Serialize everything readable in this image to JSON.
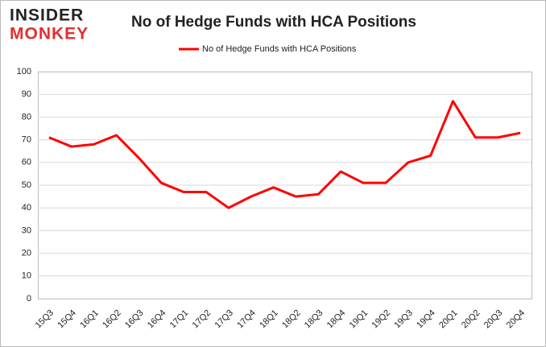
{
  "chart_data": {
    "type": "line",
    "logo": [
      "INSIDER",
      "MONKEY"
    ],
    "title": "No of Hedge Funds with HCA Positions",
    "categories": [
      "15Q3",
      "15Q4",
      "16Q1",
      "16Q2",
      "16Q3",
      "16Q4",
      "17Q1",
      "17Q2",
      "17Q3",
      "17Q4",
      "18Q1",
      "18Q2",
      "18Q3",
      "18Q4",
      "19Q1",
      "19Q2",
      "19Q3",
      "19Q4",
      "20Q1",
      "20Q2",
      "20Q3",
      "20Q4"
    ],
    "series": [
      {
        "name": "No of Hedge Funds with HCA Positions",
        "color": "#ff0000",
        "values": [
          71,
          67,
          68,
          72,
          62,
          51,
          47,
          47,
          40,
          45,
          49,
          45,
          46,
          56,
          51,
          51,
          60,
          63,
          87,
          71,
          71,
          73
        ]
      }
    ],
    "ylim": [
      0,
      100
    ],
    "yticks": [
      0,
      10,
      20,
      30,
      40,
      50,
      60,
      70,
      80,
      90,
      100
    ],
    "grid": true,
    "legend": "top"
  }
}
